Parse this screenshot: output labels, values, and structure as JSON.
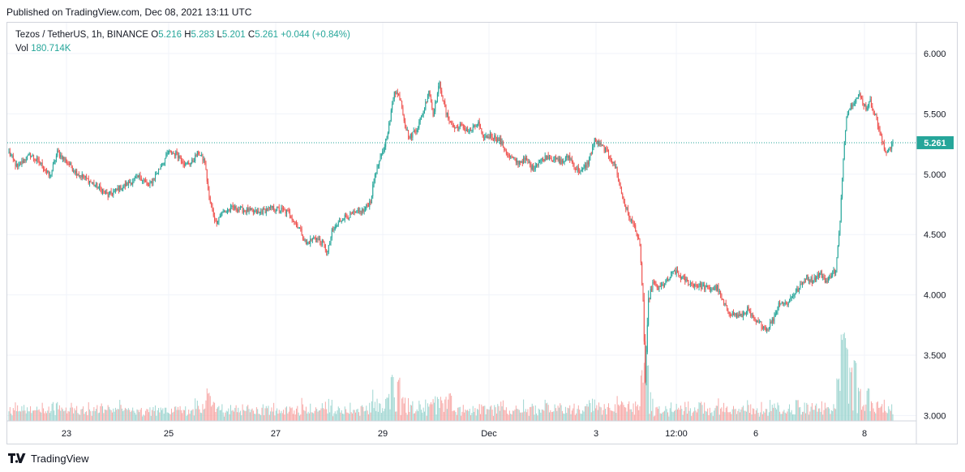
{
  "header": {
    "published": "Published on TradingView.com, Dec 08, 2021 13:11 UTC"
  },
  "legend": {
    "symbol": "Tezos / TetherUS, 1h, BINANCE",
    "open_label": "O",
    "open": "5.216",
    "high_label": "H",
    "high": "5.283",
    "low_label": "L",
    "low": "5.201",
    "close_label": "C",
    "close": "5.261",
    "change": "+0.044 (+0.84%)",
    "vol_label": "Vol",
    "vol": "180.714K"
  },
  "footer": {
    "brand": "TradingView"
  },
  "colors": {
    "up": "#26a69a",
    "down": "#ef5350",
    "up_vol": "#9fd6d1",
    "down_vol": "#f7a9a7",
    "grid": "#f0f3fa",
    "axis_text": "#131722"
  },
  "chart_data": {
    "type": "candlestick",
    "title": "Tezos / TetherUS, 1h, BINANCE",
    "ylim": [
      2.95,
      6.3
    ],
    "y_ticks": [
      "6.000",
      "5.500",
      "5.000",
      "4.500",
      "4.000",
      "3.500",
      "3.000"
    ],
    "x_ticks": [
      "23",
      "25",
      "27",
      "29",
      "Dec",
      "3",
      "12:00",
      "6",
      "8"
    ],
    "last_price": "5.261",
    "anchors": [
      [
        0,
        5.18
      ],
      [
        8,
        5.05
      ],
      [
        14,
        5.12
      ],
      [
        20,
        5.16
      ],
      [
        30,
        5.08
      ],
      [
        38,
        4.98
      ],
      [
        45,
        5.18
      ],
      [
        54,
        5.1
      ],
      [
        62,
        5.02
      ],
      [
        72,
        4.96
      ],
      [
        82,
        4.9
      ],
      [
        92,
        4.82
      ],
      [
        102,
        4.88
      ],
      [
        112,
        4.93
      ],
      [
        122,
        4.98
      ],
      [
        130,
        4.9
      ],
      [
        140,
        5.05
      ],
      [
        148,
        5.18
      ],
      [
        156,
        5.17
      ],
      [
        164,
        5.08
      ],
      [
        170,
        5.1
      ],
      [
        176,
        5.18
      ],
      [
        182,
        5.1
      ],
      [
        186,
        4.8
      ],
      [
        192,
        4.6
      ],
      [
        198,
        4.68
      ],
      [
        208,
        4.72
      ],
      [
        220,
        4.7
      ],
      [
        232,
        4.68
      ],
      [
        244,
        4.72
      ],
      [
        254,
        4.7
      ],
      [
        260,
        4.68
      ],
      [
        270,
        4.55
      ],
      [
        276,
        4.42
      ],
      [
        284,
        4.48
      ],
      [
        292,
        4.42
      ],
      [
        296,
        4.35
      ],
      [
        300,
        4.52
      ],
      [
        310,
        4.64
      ],
      [
        320,
        4.67
      ],
      [
        330,
        4.7
      ],
      [
        336,
        4.78
      ],
      [
        340,
        5.0
      ],
      [
        348,
        5.2
      ],
      [
        354,
        5.45
      ],
      [
        358,
        5.7
      ],
      [
        364,
        5.62
      ],
      [
        368,
        5.4
      ],
      [
        372,
        5.3
      ],
      [
        380,
        5.4
      ],
      [
        386,
        5.55
      ],
      [
        390,
        5.7
      ],
      [
        394,
        5.5
      ],
      [
        400,
        5.75
      ],
      [
        406,
        5.5
      ],
      [
        414,
        5.38
      ],
      [
        420,
        5.4
      ],
      [
        428,
        5.35
      ],
      [
        436,
        5.42
      ],
      [
        440,
        5.3
      ],
      [
        448,
        5.32
      ],
      [
        456,
        5.28
      ],
      [
        464,
        5.15
      ],
      [
        472,
        5.1
      ],
      [
        480,
        5.12
      ],
      [
        486,
        5.05
      ],
      [
        492,
        5.1
      ],
      [
        500,
        5.15
      ],
      [
        508,
        5.12
      ],
      [
        514,
        5.1
      ],
      [
        520,
        5.15
      ],
      [
        526,
        5.05
      ],
      [
        532,
        5.02
      ],
      [
        538,
        5.1
      ],
      [
        544,
        5.28
      ],
      [
        552,
        5.22
      ],
      [
        558,
        5.15
      ],
      [
        564,
        5.05
      ],
      [
        570,
        4.8
      ],
      [
        576,
        4.65
      ],
      [
        582,
        4.55
      ],
      [
        586,
        4.4
      ],
      [
        589,
        3.95
      ],
      [
        591,
        3.28
      ],
      [
        594,
        3.95
      ],
      [
        598,
        4.1
      ],
      [
        604,
        4.05
      ],
      [
        612,
        4.12
      ],
      [
        618,
        4.2
      ],
      [
        624,
        4.15
      ],
      [
        632,
        4.1
      ],
      [
        640,
        4.08
      ],
      [
        650,
        4.05
      ],
      [
        658,
        4.06
      ],
      [
        664,
        3.92
      ],
      [
        670,
        3.85
      ],
      [
        680,
        3.82
      ],
      [
        686,
        3.88
      ],
      [
        692,
        3.78
      ],
      [
        698,
        3.76
      ],
      [
        704,
        3.72
      ],
      [
        710,
        3.8
      ],
      [
        716,
        3.95
      ],
      [
        722,
        3.92
      ],
      [
        728,
        4.0
      ],
      [
        734,
        4.05
      ],
      [
        740,
        4.15
      ],
      [
        746,
        4.12
      ],
      [
        754,
        4.18
      ],
      [
        760,
        4.1
      ],
      [
        764,
        4.18
      ],
      [
        768,
        4.2
      ],
      [
        772,
        4.6
      ],
      [
        775,
        5.15
      ],
      [
        778,
        5.5
      ],
      [
        784,
        5.6
      ],
      [
        790,
        5.65
      ],
      [
        796,
        5.55
      ],
      [
        800,
        5.6
      ],
      [
        806,
        5.45
      ],
      [
        810,
        5.3
      ],
      [
        814,
        5.18
      ],
      [
        818,
        5.22
      ],
      [
        821,
        5.261
      ]
    ],
    "volume_spikes": [
      [
        186,
        0.3
      ],
      [
        352,
        0.25
      ],
      [
        356,
        0.5
      ],
      [
        362,
        0.45
      ],
      [
        410,
        0.3
      ],
      [
        590,
        0.3
      ],
      [
        642,
        0.2
      ],
      [
        732,
        0.25
      ],
      [
        770,
        0.45
      ],
      [
        774,
        0.95
      ],
      [
        776,
        1.0
      ],
      [
        778,
        0.8
      ],
      [
        782,
        0.55
      ],
      [
        786,
        0.65
      ],
      [
        790,
        0.35
      ],
      [
        798,
        0.35
      ]
    ],
    "n_candles": 822
  }
}
